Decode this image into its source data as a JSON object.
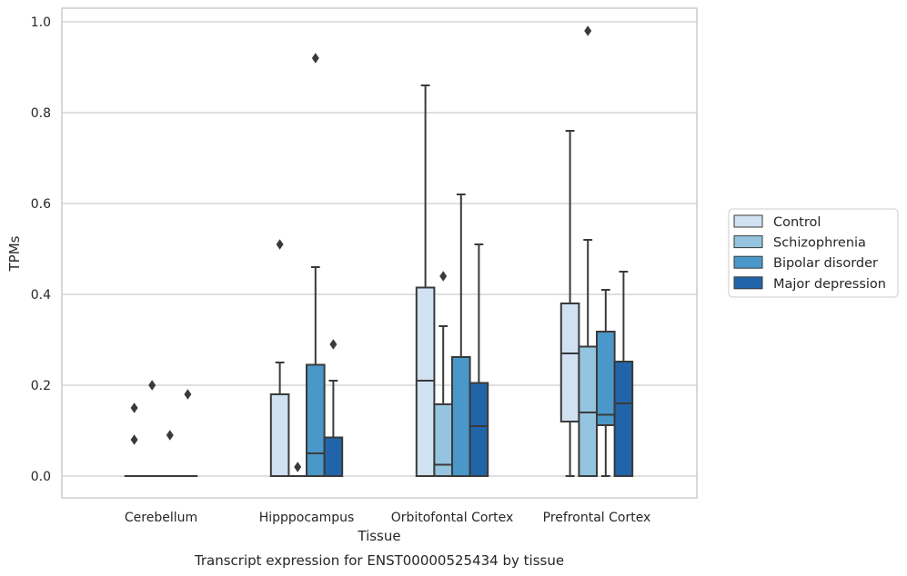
{
  "chart_data": {
    "type": "box",
    "xlabel": "Tissue",
    "ylabel": "TPMs",
    "caption": "Transcript expression for ENST00000525434 by tissue",
    "ylim": [
      -0.045,
      1.03
    ],
    "yticks": [
      "0.0",
      "0.2",
      "0.4",
      "0.6",
      "0.8",
      "1.0"
    ],
    "ytick_values": [
      0.0,
      0.2,
      0.4,
      0.6,
      0.8,
      1.0
    ],
    "grid": true,
    "legend_position": "right",
    "categories": [
      "Cerebellum",
      "Hipppocampus",
      "Orbitofontal Cortex",
      "Prefrontal Cortex"
    ],
    "series": [
      {
        "name": "Control",
        "color": "#d0e1f2",
        "boxes": [
          {
            "min": 0.0,
            "q1": 0.0,
            "median": 0.0,
            "q3": 0.0,
            "max": 0.0,
            "outliers": [
              0.08,
              0.15
            ]
          },
          {
            "min": 0.0,
            "q1": 0.0,
            "median": 0.0,
            "q3": 0.18,
            "max": 0.25,
            "outliers": [
              0.51
            ]
          },
          {
            "min": 0.0,
            "q1": 0.0,
            "median": 0.21,
            "q3": 0.415,
            "max": 0.86,
            "outliers": []
          },
          {
            "min": 0.0,
            "q1": 0.12,
            "median": 0.27,
            "q3": 0.38,
            "max": 0.76,
            "outliers": []
          }
        ]
      },
      {
        "name": "Schizophrenia",
        "color": "#94c4df",
        "boxes": [
          {
            "min": 0.0,
            "q1": 0.0,
            "median": 0.0,
            "q3": 0.0,
            "max": 0.0,
            "outliers": [
              0.2
            ]
          },
          {
            "min": 0.0,
            "q1": 0.0,
            "median": 0.0,
            "q3": 0.0,
            "max": 0.0,
            "outliers": [
              0.02
            ]
          },
          {
            "min": 0.0,
            "q1": 0.0,
            "median": 0.025,
            "q3": 0.158,
            "max": 0.33,
            "outliers": [
              0.44
            ]
          },
          {
            "min": 0.0,
            "q1": 0.0,
            "median": 0.14,
            "q3": 0.285,
            "max": 0.52,
            "outliers": [
              0.98
            ]
          }
        ]
      },
      {
        "name": "Bipolar disorder",
        "color": "#4a98c9",
        "boxes": [
          {
            "min": 0.0,
            "q1": 0.0,
            "median": 0.0,
            "q3": 0.0,
            "max": 0.0,
            "outliers": [
              0.09
            ]
          },
          {
            "min": 0.0,
            "q1": 0.0,
            "median": 0.05,
            "q3": 0.245,
            "max": 0.46,
            "outliers": [
              0.92
            ]
          },
          {
            "min": 0.0,
            "q1": 0.0,
            "median": 0.0,
            "q3": 0.262,
            "max": 0.62,
            "outliers": []
          },
          {
            "min": 0.0,
            "q1": 0.112,
            "median": 0.135,
            "q3": 0.318,
            "max": 0.41,
            "outliers": []
          }
        ]
      },
      {
        "name": "Major depression",
        "color": "#2264a9",
        "boxes": [
          {
            "min": 0.0,
            "q1": 0.0,
            "median": 0.0,
            "q3": 0.0,
            "max": 0.0,
            "outliers": [
              0.18
            ]
          },
          {
            "min": 0.0,
            "q1": 0.0,
            "median": 0.0,
            "q3": 0.085,
            "max": 0.21,
            "outliers": [
              0.29
            ]
          },
          {
            "min": 0.0,
            "q1": 0.0,
            "median": 0.11,
            "q3": 0.205,
            "max": 0.51,
            "outliers": []
          },
          {
            "min": 0.0,
            "q1": 0.0,
            "median": 0.16,
            "q3": 0.252,
            "max": 0.45,
            "outliers": []
          }
        ]
      }
    ]
  }
}
